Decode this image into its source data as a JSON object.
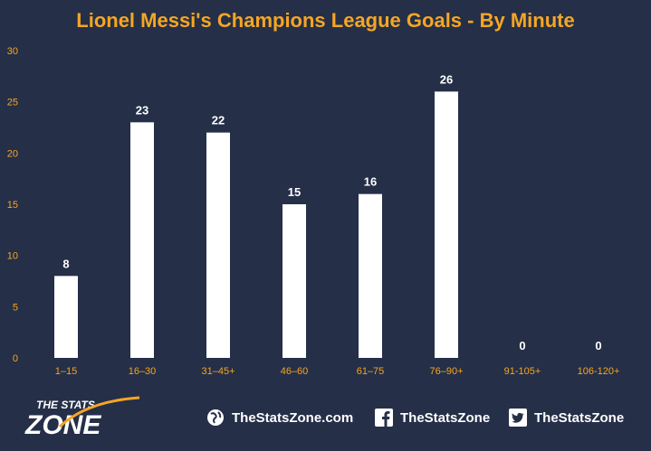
{
  "chart_data": {
    "type": "bar",
    "title": "Lionel Messi's Champions League Goals - By Minute",
    "xlabel": "",
    "ylabel": "",
    "categories": [
      "1–15",
      "16–30",
      "31–45+",
      "46–60",
      "61–75",
      "76–90+",
      "91-105+",
      "106-120+"
    ],
    "values": [
      8,
      23,
      22,
      15,
      16,
      26,
      0,
      0
    ],
    "ylim": [
      0,
      30
    ],
    "yticks": [
      0,
      5,
      10,
      15,
      20,
      25,
      30
    ],
    "grid": false,
    "legend": "none",
    "colors": {
      "background": "#252f48",
      "bar": "#ffffff",
      "accent": "#f5a623"
    }
  },
  "footer": {
    "logo_text_top": "THE STATS",
    "logo_text_bottom": "ZONE",
    "website": "TheStatsZone.com",
    "facebook": "TheStatsZone",
    "twitter": "TheStatsZone",
    "icons": [
      "globe-icon",
      "facebook-icon",
      "twitter-icon"
    ]
  }
}
